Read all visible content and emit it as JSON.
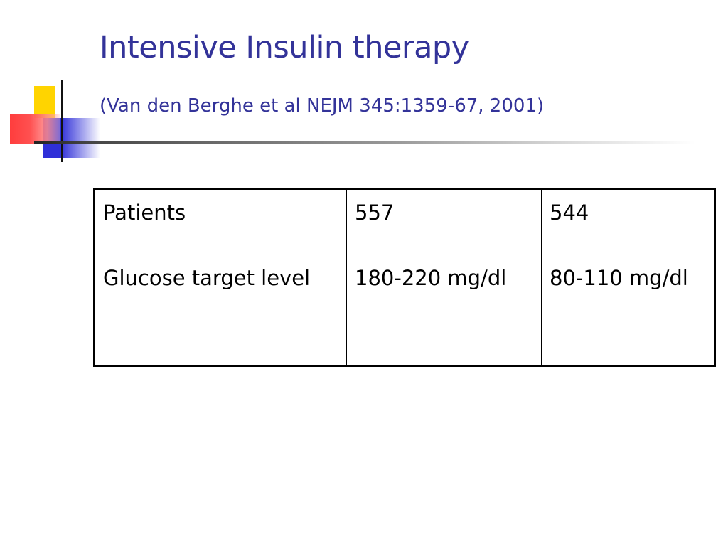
{
  "slide": {
    "title": "Intensive Insulin therapy",
    "subtitle": "(Van den Berghe et al NEJM 345:1359-67, 2001)"
  },
  "table": {
    "rows": [
      {
        "label": "Patients",
        "col1": "557",
        "col2": "544"
      },
      {
        "label": "Glucose target level",
        "col1": "180-220 mg/dl",
        "col2": "80-110 mg/dl"
      }
    ]
  },
  "colors": {
    "title": "#333399",
    "accent_yellow": "#ffd400",
    "accent_blue": "#2f2fd8",
    "accent_red": "#ff5050"
  }
}
